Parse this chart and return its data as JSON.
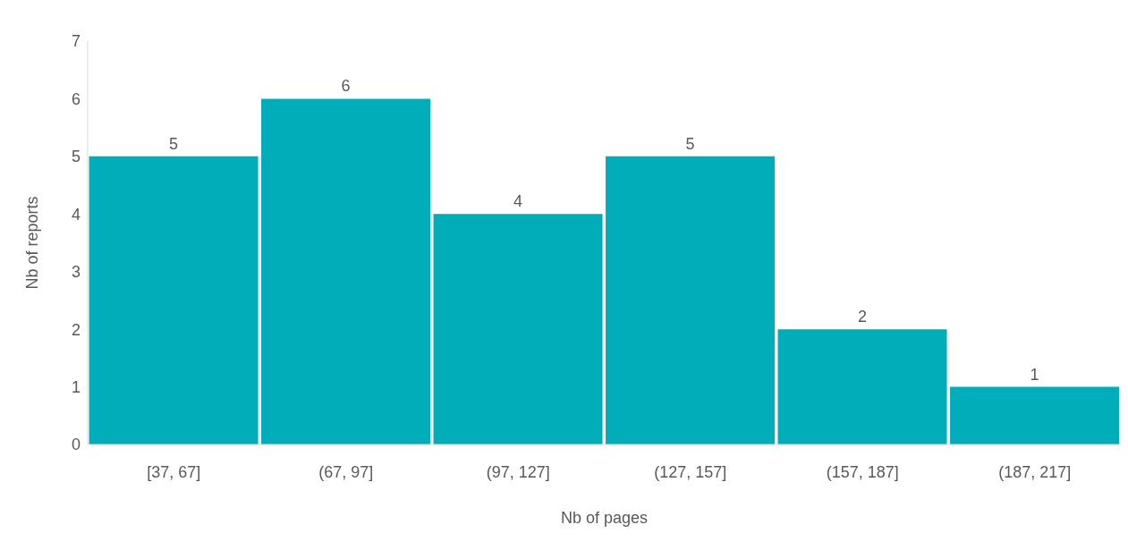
{
  "chart_data": {
    "type": "bar",
    "xlabel": "Nb of pages",
    "ylabel": "Nb of reports",
    "categories": [
      "[37, 67]",
      "(67, 97]",
      "(97, 127]",
      "(127, 157]",
      "(157, 187]",
      "(187, 217]"
    ],
    "values": [
      5,
      6,
      4,
      5,
      2,
      1
    ],
    "color": "#00adb9",
    "ylim": [
      0,
      7
    ],
    "yticks": [
      0,
      1,
      2,
      3,
      4,
      5,
      6,
      7
    ],
    "grid": false,
    "legend": false,
    "data_labels": true
  }
}
